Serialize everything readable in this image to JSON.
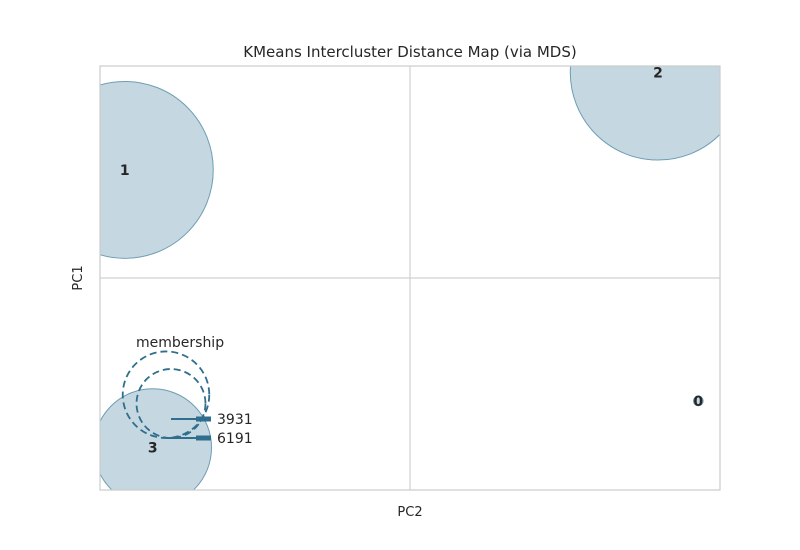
{
  "chart_data": {
    "type": "scatter",
    "title": "KMeans Intercluster Distance Map (via MDS)",
    "xlabel": "PC2",
    "ylabel": "PC1",
    "xlim": [
      -1,
      1
    ],
    "ylim": [
      -1,
      1
    ],
    "grid": true,
    "colors": {
      "bubble_fill": "#c5d8e2",
      "bubble_edge": "#6e9db3",
      "legend_line": "#2f6e8c",
      "grid": "#d0d0d0",
      "frame": "#cccccc"
    },
    "clusters": [
      {
        "label": "0",
        "x": 0.93,
        "y": -0.58,
        "size": 30
      },
      {
        "label": "1",
        "x": -0.92,
        "y": 0.51,
        "size": 10170
      },
      {
        "label": "2",
        "x": 0.8,
        "y": 0.97,
        "size": 10000
      },
      {
        "label": "3",
        "x": -0.83,
        "y": -0.8,
        "size": 4500
      }
    ],
    "legend": {
      "title": "membership",
      "placement": "lower-left",
      "entries": [
        {
          "label": "3931",
          "value": 3931
        },
        {
          "label": "6191",
          "value": 6191
        }
      ]
    }
  }
}
